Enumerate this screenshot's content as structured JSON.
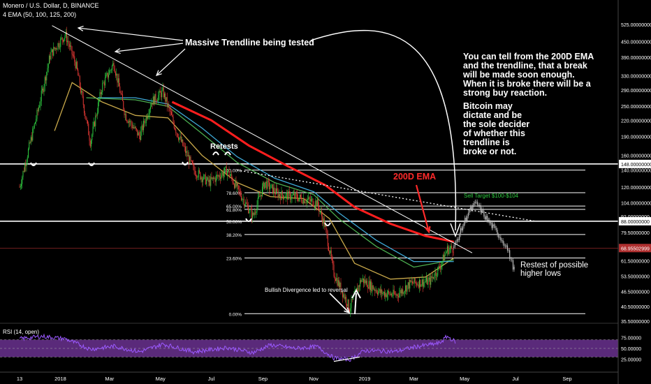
{
  "header": {
    "symbol_line": "Monero / U.S. Dollar, D, BINANCE",
    "indicator_line": "4 EMA (50, 100, 125, 200)"
  },
  "colors": {
    "background": "#000000",
    "bull_candle": "#2ecc40",
    "bear_candle": "#e53935",
    "projection": "#bdbdbd",
    "ema50": "#c8a84a",
    "ema100": "#4caf50",
    "ema125": "#3fa9d6",
    "ema200": "#ff1e1e",
    "rsi_line": "#9b59ff",
    "rsi_band": "#5a2a7a",
    "fib_lines": "#ffffff",
    "current_price_line": "#b03030"
  },
  "annotations": {
    "trendline_label": "Massive Trendline being tested",
    "ema_note": "You can tell from the 200D EMA\nand the trendline, that a break\nwill be made soon enough.\nWhen it is broke there will be a\nstrong buy reaction.",
    "btc_note": "Bitcoin may\ndictate and be\nthe sole decider\nof whether this\ntrendline is\nbroke or not.",
    "ema200_label": "200D EMA",
    "sell_target": "Sell Target $100-$104",
    "retests": "Retests",
    "divergence": "Bullish Divergence led to reversal",
    "restest": "Restest of possible\nhigher lows"
  },
  "chart_data": {
    "type": "candlestick",
    "y_scale": "log",
    "y_ticks": [
      "525.00000000",
      "450.00000000",
      "390.00000000",
      "330.00000000",
      "290.00000000",
      "250.00000000",
      "220.00000000",
      "190.00000000",
      "160.00000000",
      "140.00000000",
      "120.00000000",
      "104.00000000",
      "92.00000000",
      "79.50000000",
      "61.50000000",
      "53.50000000",
      "46.50000000",
      "40.50000000",
      "35.50000000"
    ],
    "price_markers": [
      {
        "label": "148.00000000",
        "value": 148
      },
      {
        "label": "88.00000000",
        "value": 88
      },
      {
        "label": "68.95502999",
        "value": 68.955
      }
    ],
    "fib_levels": [
      {
        "label": "100.00%",
        "value": 140
      },
      {
        "label": "78.60%",
        "value": 114
      },
      {
        "label": "65.00%",
        "value": 101
      },
      {
        "label": "61.80%",
        "value": 98
      },
      {
        "label": "50.00%",
        "value": 88
      },
      {
        "label": "38.20%",
        "value": 78
      },
      {
        "label": "23.60%",
        "value": 63
      },
      {
        "label": "0.00%",
        "value": 38
      }
    ],
    "x_labels": [
      "13",
      "2018",
      "Mar",
      "May",
      "Jul",
      "Sep",
      "Nov",
      "2019",
      "Mar",
      "May",
      "Jul",
      "Sep"
    ],
    "price_path": [
      [
        "2017-11-13",
        120
      ],
      [
        "2017-12-05",
        240
      ],
      [
        "2017-12-20",
        400
      ],
      [
        "2018-01-07",
        480
      ],
      [
        "2018-01-20",
        360
      ],
      [
        "2018-02-06",
        180
      ],
      [
        "2018-02-20",
        300
      ],
      [
        "2018-03-06",
        370
      ],
      [
        "2018-03-20",
        230
      ],
      [
        "2018-04-06",
        190
      ],
      [
        "2018-04-20",
        260
      ],
      [
        "2018-05-04",
        285
      ],
      [
        "2018-05-20",
        200
      ],
      [
        "2018-06-10",
        140
      ],
      [
        "2018-06-28",
        125
      ],
      [
        "2018-07-20",
        140
      ],
      [
        "2018-08-10",
        105
      ],
      [
        "2018-08-20",
        92
      ],
      [
        "2018-09-03",
        125
      ],
      [
        "2018-09-20",
        112
      ],
      [
        "2018-10-10",
        110
      ],
      [
        "2018-11-05",
        104
      ],
      [
        "2018-11-14",
        85
      ],
      [
        "2018-11-25",
        55
      ],
      [
        "2018-12-14",
        40
      ],
      [
        "2018-12-28",
        52
      ],
      [
        "2019-01-20",
        46
      ],
      [
        "2019-02-08",
        45
      ],
      [
        "2019-02-25",
        50
      ],
      [
        "2019-03-20",
        51
      ],
      [
        "2019-04-01",
        58
      ],
      [
        "2019-04-10",
        68
      ],
      [
        "2019-04-18",
        69
      ]
    ],
    "projection_path": [
      [
        "2019-04-18",
        69
      ],
      [
        "2019-05-05",
        95
      ],
      [
        "2019-05-15",
        104
      ],
      [
        "2019-05-25",
        92
      ],
      [
        "2019-06-08",
        80
      ],
      [
        "2019-06-20",
        70
      ],
      [
        "2019-06-30",
        56
      ]
    ],
    "ema_series": [
      {
        "name": "50",
        "points": [
          [
            "2017-12-25",
            200
          ],
          [
            "2018-01-15",
            310
          ],
          [
            "2018-02-20",
            260
          ],
          [
            "2018-04-01",
            230
          ],
          [
            "2018-05-10",
            225
          ],
          [
            "2018-06-20",
            160
          ],
          [
            "2018-08-01",
            125
          ],
          [
            "2018-09-10",
            110
          ],
          [
            "2018-10-20",
            108
          ],
          [
            "2018-11-20",
            90
          ],
          [
            "2018-12-20",
            60
          ],
          [
            "2019-02-01",
            52
          ],
          [
            "2019-03-15",
            53
          ],
          [
            "2019-04-18",
            63
          ]
        ]
      },
      {
        "name": "100",
        "points": [
          [
            "2018-02-01",
            270
          ],
          [
            "2018-04-01",
            265
          ],
          [
            "2018-05-10",
            250
          ],
          [
            "2018-06-20",
            195
          ],
          [
            "2018-08-01",
            150
          ],
          [
            "2018-09-15",
            125
          ],
          [
            "2018-11-01",
            112
          ],
          [
            "2018-12-01",
            90
          ],
          [
            "2019-01-15",
            70
          ],
          [
            "2019-03-01",
            58
          ],
          [
            "2019-04-18",
            62
          ]
        ]
      },
      {
        "name": "125",
        "points": [
          [
            "2018-02-15",
            270
          ],
          [
            "2018-04-01",
            270
          ],
          [
            "2018-05-10",
            255
          ],
          [
            "2018-06-20",
            205
          ],
          [
            "2018-08-01",
            158
          ],
          [
            "2018-09-15",
            130
          ],
          [
            "2018-11-01",
            115
          ],
          [
            "2018-12-01",
            95
          ],
          [
            "2019-01-15",
            74
          ],
          [
            "2019-03-01",
            61
          ],
          [
            "2019-04-18",
            61
          ]
        ]
      },
      {
        "name": "200",
        "points": [
          [
            "2018-05-15",
            260
          ],
          [
            "2018-07-01",
            220
          ],
          [
            "2018-08-15",
            175
          ],
          [
            "2018-10-01",
            145
          ],
          [
            "2018-11-15",
            122
          ],
          [
            "2018-12-20",
            100
          ],
          [
            "2019-02-01",
            86
          ],
          [
            "2019-03-15",
            77
          ],
          [
            "2019-04-18",
            73
          ]
        ]
      }
    ],
    "trendline": [
      [
        "2017-12-22",
        520
      ],
      [
        "2019-05-10",
        66
      ]
    ],
    "dotted_trendline": [
      [
        "2018-08-01",
        140
      ],
      [
        "2019-07-25",
        88
      ]
    ],
    "rsi": {
      "title": "RSI (14, open)",
      "ticks": [
        "75.00000",
        "50.00000",
        "25.00000"
      ],
      "band": [
        30,
        70
      ],
      "points": [
        [
          "2017-11-13",
          72
        ],
        [
          "2017-12-10",
          78
        ],
        [
          "2018-01-07",
          72
        ],
        [
          "2018-02-06",
          48
        ],
        [
          "2018-03-06",
          55
        ],
        [
          "2018-04-06",
          42
        ],
        [
          "2018-05-04",
          60
        ],
        [
          "2018-06-10",
          42
        ],
        [
          "2018-07-20",
          52
        ],
        [
          "2018-08-20",
          40
        ],
        [
          "2018-09-10",
          58
        ],
        [
          "2018-10-10",
          50
        ],
        [
          "2018-11-05",
          54
        ],
        [
          "2018-11-25",
          28
        ],
        [
          "2018-12-14",
          24
        ],
        [
          "2019-01-01",
          45
        ],
        [
          "2019-02-08",
          43
        ],
        [
          "2019-03-01",
          53
        ],
        [
          "2019-04-01",
          62
        ],
        [
          "2019-04-10",
          78
        ],
        [
          "2019-04-20",
          65
        ]
      ]
    }
  }
}
